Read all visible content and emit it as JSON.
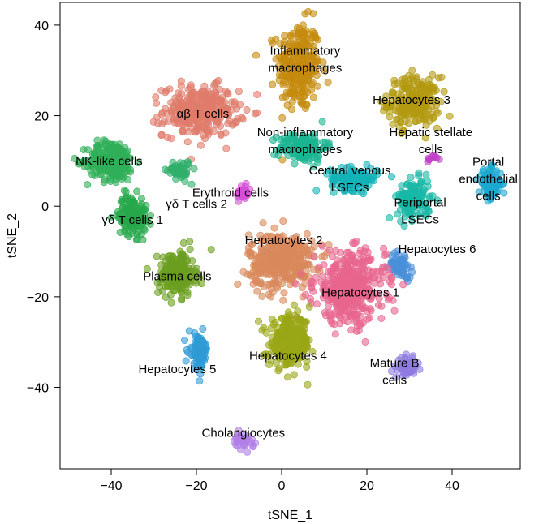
{
  "chart_data": {
    "type": "scatter",
    "title": "",
    "xlabel": "tSNE_1",
    "ylabel": "tSNE_2",
    "xlim": [
      -52,
      56
    ],
    "ylim": [
      -58,
      45
    ],
    "xticks": [
      -40,
      -20,
      0,
      20,
      40
    ],
    "yticks": [
      40,
      20,
      0,
      -20,
      -40
    ],
    "clusters": [
      {
        "name": "Inflammatory macrophages",
        "label_lines": [
          "Inflammatory",
          "macrophages"
        ],
        "label_at": [
          5.5,
          32.5
        ],
        "color": "#C58B0E",
        "center": [
          4,
          31
        ],
        "spread": [
          4.5,
          9
        ],
        "count": 260
      },
      {
        "name": "Hepatocytes 3",
        "label_lines": [
          "Hepatocytes 3"
        ],
        "label_at": [
          30.5,
          23.5
        ],
        "color": "#B39A10",
        "center": [
          31,
          23
        ],
        "spread": [
          5.5,
          5
        ],
        "count": 230
      },
      {
        "name": "αβ T cells",
        "label_lines": [
          "αβ T cells"
        ],
        "label_at": [
          -18.5,
          20.5
        ],
        "color": "#E07B6A",
        "center": [
          -19,
          21
        ],
        "spread": [
          8,
          5
        ],
        "count": 300
      },
      {
        "name": "Non-inflammatory macrophages",
        "label_lines": [
          "Non-inflammatory",
          "macrophages"
        ],
        "label_at": [
          5.5,
          14.5
        ],
        "color": "#1AB491",
        "center": [
          5,
          13
        ],
        "spread": [
          5,
          3
        ],
        "count": 160
      },
      {
        "name": "Hepatic stellate cells",
        "label_lines": [
          "Hepatic stellate",
          "cells"
        ],
        "label_at": [
          35,
          14.5
        ],
        "color": "#C040C8",
        "center": [
          35.5,
          10.5
        ],
        "spread": [
          1.2,
          0.8
        ],
        "count": 10
      },
      {
        "name": "NK-like cells",
        "label_lines": [
          "NK-like cells"
        ],
        "label_at": [
          -40.5,
          10
        ],
        "color": "#2FAF58",
        "center": [
          -40,
          10
        ],
        "spread": [
          5,
          4
        ],
        "count": 220
      },
      {
        "name": "Central venous LSECs",
        "label_lines": [
          "Central venous",
          "LSECs"
        ],
        "label_at": [
          16,
          6
        ],
        "color": "#13B3B8",
        "center": [
          17,
          6
        ],
        "spread": [
          5,
          2.2
        ],
        "count": 140
      },
      {
        "name": "Portal endothelial cells",
        "label_lines": [
          "Portal",
          "endothelial",
          "cells"
        ],
        "label_at": [
          48.5,
          6
        ],
        "color": "#1BA8D0",
        "center": [
          49,
          5
        ],
        "spread": [
          2.5,
          3
        ],
        "count": 90
      },
      {
        "name": "Erythroid cells",
        "label_lines": [
          "Erythroid cells"
        ],
        "label_at": [
          -12,
          3
        ],
        "color": "#D64FD6",
        "center": [
          -9,
          3
        ],
        "spread": [
          1.5,
          2
        ],
        "count": 30
      },
      {
        "name": "γδ T cells 2",
        "label_lines": [
          "γδ T cells 2"
        ],
        "label_at": [
          -20,
          0.5
        ],
        "color": "#2FAF6A",
        "center": [
          -24,
          8
        ],
        "spread": [
          2.5,
          2
        ],
        "count": 50
      },
      {
        "name": "Periportal LSECs",
        "label_lines": [
          "Periportal",
          "LSECs"
        ],
        "label_at": [
          32.5,
          -1
        ],
        "color": "#18B8A6",
        "center": [
          31,
          1.5
        ],
        "spread": [
          3.5,
          4
        ],
        "count": 130
      },
      {
        "name": "γδ T cells 1",
        "label_lines": [
          "γδ T cells 1"
        ],
        "label_at": [
          -35,
          -3
        ],
        "color": "#27A84B",
        "center": [
          -35,
          -2
        ],
        "spread": [
          3,
          4
        ],
        "count": 150
      },
      {
        "name": "Hepatocytes 2",
        "label_lines": [
          "Hepatocytes 2"
        ],
        "label_at": [
          0.5,
          -7.5
        ],
        "color": "#D9895B",
        "center": [
          0,
          -12
        ],
        "spread": [
          7,
          5.5
        ],
        "count": 380
      },
      {
        "name": "Hepatocytes 6",
        "label_lines": [
          "Hepatocytes 6"
        ],
        "label_at": [
          36.5,
          -9.5
        ],
        "color": "#4A90D9",
        "center": [
          28,
          -13
        ],
        "spread": [
          2.5,
          2.5
        ],
        "count": 60
      },
      {
        "name": "Plasma cells",
        "label_lines": [
          "Plasma cells"
        ],
        "label_at": [
          -24.5,
          -15.5
        ],
        "color": "#6B9E1F",
        "center": [
          -24.5,
          -15
        ],
        "spread": [
          4,
          4.5
        ],
        "count": 200
      },
      {
        "name": "Hepatocytes 1",
        "label_lines": [
          "Hepatocytes 1"
        ],
        "label_at": [
          18.5,
          -19
        ],
        "color": "#E8658E",
        "center": [
          16,
          -18
        ],
        "spread": [
          7.5,
          7
        ],
        "count": 420
      },
      {
        "name": "Hepatocytes 4",
        "label_lines": [
          "Hepatocytes 4"
        ],
        "label_at": [
          1.5,
          -33
        ],
        "color": "#9AA615",
        "center": [
          2,
          -30
        ],
        "spread": [
          4.5,
          5
        ],
        "count": 260
      },
      {
        "name": "Hepatocytes 5",
        "label_lines": [
          "Hepatocytes 5"
        ],
        "label_at": [
          -24.5,
          -36
        ],
        "color": "#2E9BD6",
        "center": [
          -19.5,
          -32
        ],
        "spread": [
          2,
          3.5
        ],
        "count": 80
      },
      {
        "name": "Mature B cells",
        "label_lines": [
          "Mature B",
          "cells"
        ],
        "label_at": [
          26.5,
          -36.5
        ],
        "color": "#8F7CE0",
        "center": [
          29.5,
          -35.5
        ],
        "spread": [
          2,
          1.8
        ],
        "count": 70
      },
      {
        "name": "Cholangiocytes",
        "label_lines": [
          "Cholangiocytes"
        ],
        "label_at": [
          -9,
          -50
        ],
        "color": "#B27FE8",
        "center": [
          -9,
          -52
        ],
        "spread": [
          2.2,
          1.5
        ],
        "count": 35
      }
    ]
  }
}
